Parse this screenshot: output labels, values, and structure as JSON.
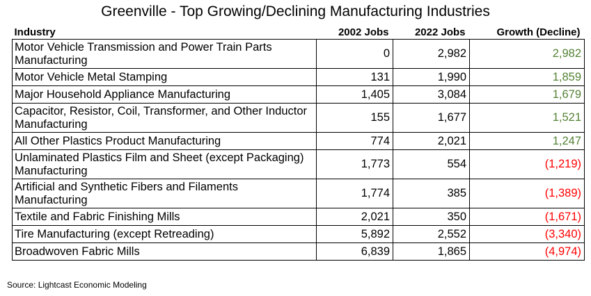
{
  "title": "Greenville - Top Growing/Declining Manufacturing Industries",
  "columns": {
    "industry": "Industry",
    "jobs2002": "2002 Jobs",
    "jobs2022": "2022 Jobs",
    "growth": "Growth (Decline)"
  },
  "colors": {
    "growth_positive": "#548235",
    "growth_negative": "#ff0000"
  },
  "rows": [
    {
      "industry": "Motor Vehicle Transmission and Power Train Parts Manufacturing",
      "jobs2002": "0",
      "jobs2022": "2,982",
      "growth": "2,982",
      "trend": "positive"
    },
    {
      "industry": "Motor Vehicle Metal Stamping",
      "jobs2002": "131",
      "jobs2022": "1,990",
      "growth": "1,859",
      "trend": "positive"
    },
    {
      "industry": "Major Household Appliance Manufacturing",
      "jobs2002": "1,405",
      "jobs2022": "3,084",
      "growth": "1,679",
      "trend": "positive"
    },
    {
      "industry": "Capacitor, Resistor, Coil, Transformer, and Other Inductor Manufacturing",
      "jobs2002": "155",
      "jobs2022": "1,677",
      "growth": "1,521",
      "trend": "positive"
    },
    {
      "industry": "All Other Plastics Product Manufacturing",
      "jobs2002": "774",
      "jobs2022": "2,021",
      "growth": "1,247",
      "trend": "positive"
    },
    {
      "industry": "Unlaminated Plastics Film and Sheet (except Packaging) Manufacturing",
      "jobs2002": "1,773",
      "jobs2022": "554",
      "growth": "(1,219)",
      "trend": "negative"
    },
    {
      "industry": "Artificial and Synthetic Fibers and Filaments Manufacturing",
      "jobs2002": "1,774",
      "jobs2022": "385",
      "growth": "(1,389)",
      "trend": "negative"
    },
    {
      "industry": "Textile and Fabric Finishing Mills",
      "jobs2002": "2,021",
      "jobs2022": "350",
      "growth": "(1,671)",
      "trend": "negative"
    },
    {
      "industry": "Tire Manufacturing (except Retreading)",
      "jobs2002": "5,892",
      "jobs2022": "2,552",
      "growth": "(3,340)",
      "trend": "negative"
    },
    {
      "industry": "Broadwoven Fabric Mills",
      "jobs2002": "6,839",
      "jobs2022": "1,865",
      "growth": "(4,974)",
      "trend": "negative"
    }
  ],
  "source": "Source: Lightcast Economic Modeling"
}
